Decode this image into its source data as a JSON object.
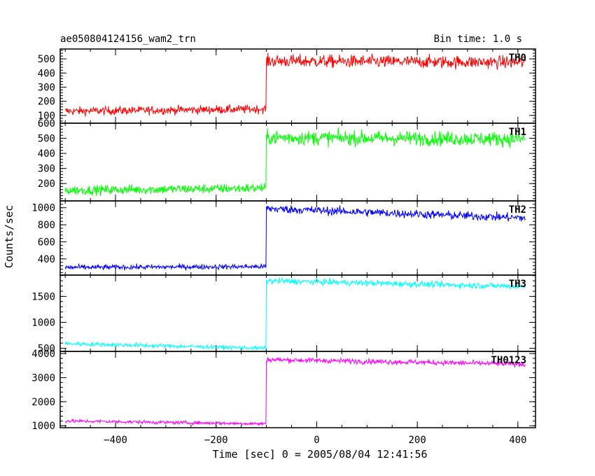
{
  "chart_data": {
    "type": "line",
    "title": "ae050804124156_wam2_trn",
    "bin_time": "Bin time: 1.0 s",
    "xlabel": "Time [sec] 0 = 2005/08/04 12:41:56",
    "ylabel": "Counts/sec",
    "xlim": [
      -510,
      435
    ],
    "x_ticks": [
      -400,
      -200,
      0,
      200,
      400
    ],
    "x_tick_labels": [
      "−400",
      "−200",
      "0",
      "200",
      "400"
    ],
    "x_range": [
      -500,
      415
    ],
    "step_x": -100,
    "grid": false,
    "legend": "none",
    "panels": [
      {
        "name": "TH0",
        "color": "#ff0000",
        "ylim": [
          45,
          570
        ],
        "y_ticks": [
          100,
          200,
          300,
          400,
          500
        ],
        "y_tick_labels": [
          "100",
          "200",
          "300",
          "400",
          "500"
        ],
        "pre_start": 130,
        "pre_end": 145,
        "pre_noise": 30,
        "post_start": 485,
        "post_end": 475,
        "post_noise": 45
      },
      {
        "name": "TH1",
        "color": "#00ff00",
        "ylim": [
          85,
          600
        ],
        "y_ticks": [
          200,
          300,
          400,
          500,
          600
        ],
        "y_tick_labels": [
          "200",
          "300",
          "400",
          "500",
          "600"
        ],
        "pre_start": 155,
        "pre_end": 170,
        "pre_noise": 32,
        "post_start": 505,
        "post_end": 495,
        "post_noise": 48
      },
      {
        "name": "TH2",
        "color": "#0000ff",
        "ylim": [
          210,
          1080
        ],
        "y_ticks": [
          400,
          600,
          800,
          1000
        ],
        "y_tick_labels": [
          "400",
          "600",
          "800",
          "1000"
        ],
        "pre_start": 300,
        "pre_end": 310,
        "pre_noise": 30,
        "post_start": 990,
        "post_end": 880,
        "post_noise": 50
      },
      {
        "name": "TH3",
        "color": "#00ffff",
        "ylim": [
          440,
          1910
        ],
        "y_ticks": [
          500,
          1000,
          1500
        ],
        "y_tick_labels": [
          "500",
          "1000",
          "1500"
        ],
        "pre_start": 590,
        "pre_end": 500,
        "pre_noise": 40,
        "post_start": 1800,
        "post_end": 1690,
        "post_noise": 60
      },
      {
        "name": "TH0123",
        "color": "#ff00ff",
        "ylim": [
          920,
          4090
        ],
        "y_ticks": [
          1000,
          2000,
          3000,
          4000
        ],
        "y_tick_labels": [
          "1000",
          "2000",
          "3000",
          "4000"
        ],
        "pre_start": 1200,
        "pre_end": 1080,
        "pre_noise": 70,
        "post_start": 3750,
        "post_end": 3560,
        "post_noise": 110
      }
    ]
  }
}
